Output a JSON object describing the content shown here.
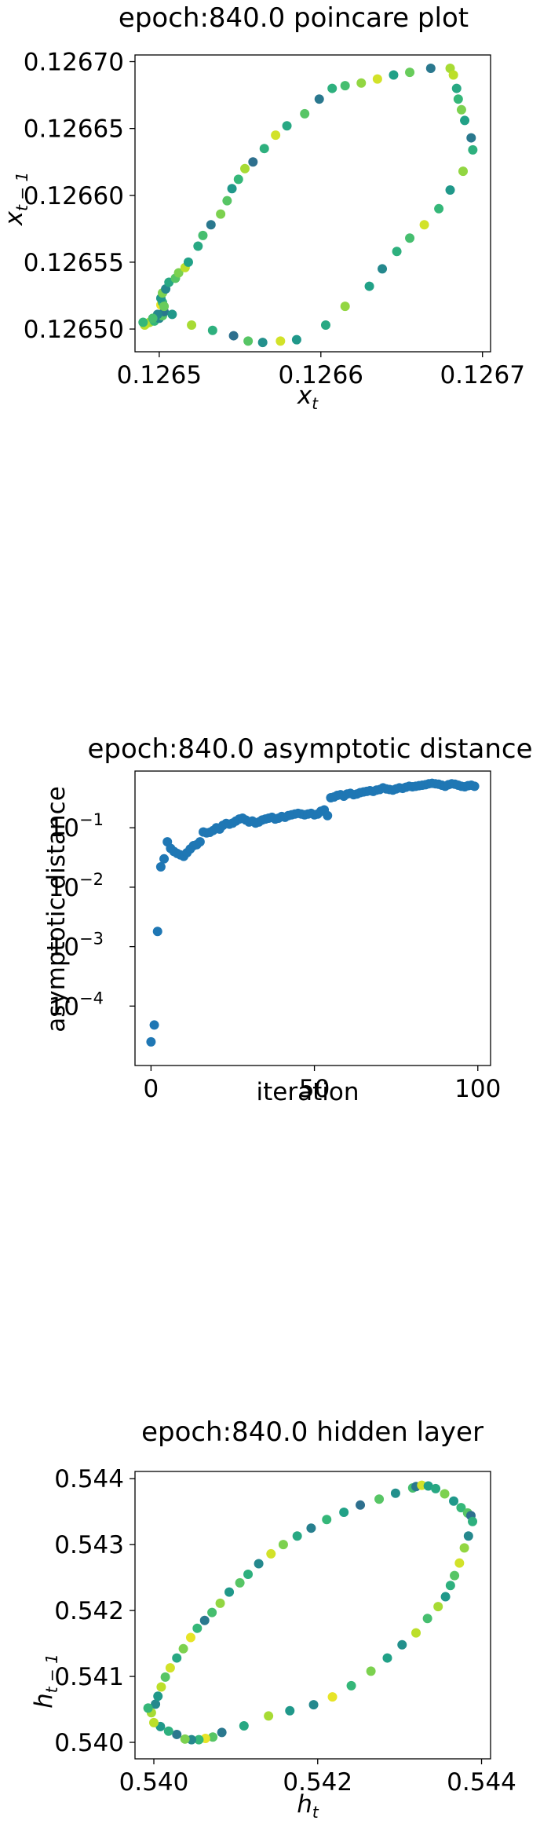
{
  "chart_data": [
    {
      "type": "scatter",
      "title": "epoch:840.0 poincare plot",
      "xlabel": "x_t",
      "ylabel": "x_{t-1}",
      "xlim": [
        0.126485,
        0.126705
      ],
      "ylim": [
        0.126483,
        0.126705
      ],
      "xticks": [
        {
          "value": 0.1265,
          "label": "0.1265"
        },
        {
          "value": 0.1266,
          "label": "0.1266"
        },
        {
          "value": 0.1267,
          "label": "0.1267"
        }
      ],
      "yticks": [
        {
          "value": 0.1265,
          "label": "0.12650"
        },
        {
          "value": 0.12655,
          "label": "0.12655"
        },
        {
          "value": 0.1266,
          "label": "0.12660"
        },
        {
          "value": 0.12665,
          "label": "0.12665"
        },
        {
          "value": 0.1267,
          "label": "0.12670"
        }
      ],
      "colormap": [
        "#31688e",
        "#26828e",
        "#1f9e89",
        "#35b779",
        "#6ece58",
        "#b5de2b",
        "#fde725"
      ],
      "grid": false,
      "points": [
        [
          0.126492,
          0.126504,
          0.9
        ],
        [
          0.126494,
          0.126505,
          0.8
        ],
        [
          0.126497,
          0.126506,
          0.5
        ],
        [
          0.1265,
          0.126508,
          0.2
        ],
        [
          0.126502,
          0.12651,
          0.6
        ],
        [
          0.126503,
          0.126513,
          0.1
        ],
        [
          0.126501,
          0.126518,
          0.95
        ],
        [
          0.126502,
          0.12652,
          0.5
        ],
        [
          0.126501,
          0.126523,
          0.3
        ],
        [
          0.126502,
          0.126527,
          0.7
        ],
        [
          0.126504,
          0.12653,
          0.2
        ],
        [
          0.126506,
          0.126535,
          0.4
        ],
        [
          0.12651,
          0.126538,
          0.6
        ],
        [
          0.126512,
          0.126542,
          0.7
        ],
        [
          0.126516,
          0.126546,
          0.85
        ],
        [
          0.126518,
          0.12655,
          0.35
        ],
        [
          0.126524,
          0.126562,
          0.4
        ],
        [
          0.126527,
          0.12657,
          0.55
        ],
        [
          0.126532,
          0.126578,
          0.1
        ],
        [
          0.126538,
          0.126586,
          0.7
        ],
        [
          0.126542,
          0.126596,
          0.6
        ],
        [
          0.126545,
          0.126605,
          0.3
        ],
        [
          0.126549,
          0.126612,
          0.5
        ],
        [
          0.126553,
          0.12662,
          0.8
        ],
        [
          0.126558,
          0.126625,
          0.05
        ],
        [
          0.126565,
          0.126635,
          0.45
        ],
        [
          0.126572,
          0.126645,
          0.9
        ],
        [
          0.126579,
          0.126652,
          0.4
        ],
        [
          0.12659,
          0.126661,
          0.6
        ],
        [
          0.126599,
          0.126672,
          0.1
        ],
        [
          0.126607,
          0.12668,
          0.45
        ],
        [
          0.126615,
          0.126682,
          0.55
        ],
        [
          0.126625,
          0.126684,
          0.75
        ],
        [
          0.126635,
          0.126687,
          0.9
        ],
        [
          0.126645,
          0.12669,
          0.35
        ],
        [
          0.126655,
          0.126692,
          0.65
        ],
        [
          0.126668,
          0.126695,
          0.1
        ],
        [
          0.12668,
          0.126695,
          0.8
        ],
        [
          0.126682,
          0.12669,
          0.85
        ],
        [
          0.126684,
          0.12668,
          0.4
        ],
        [
          0.126685,
          0.126672,
          0.5
        ],
        [
          0.126687,
          0.126664,
          0.7
        ],
        [
          0.126689,
          0.126656,
          0.35
        ],
        [
          0.126693,
          0.126643,
          0.1
        ],
        [
          0.126694,
          0.126634,
          0.45
        ],
        [
          0.126688,
          0.126618,
          0.75
        ],
        [
          0.12668,
          0.126604,
          0.3
        ],
        [
          0.126673,
          0.12659,
          0.5
        ],
        [
          0.126664,
          0.126578,
          0.9
        ],
        [
          0.126655,
          0.126568,
          0.55
        ],
        [
          0.126647,
          0.126558,
          0.45
        ],
        [
          0.126638,
          0.126545,
          0.2
        ],
        [
          0.12663,
          0.126532,
          0.35
        ],
        [
          0.126615,
          0.126517,
          0.75
        ],
        [
          0.126603,
          0.126503,
          0.4
        ],
        [
          0.126585,
          0.126492,
          0.3
        ],
        [
          0.126575,
          0.126491,
          0.9
        ],
        [
          0.126564,
          0.12649,
          0.25
        ],
        [
          0.126555,
          0.126491,
          0.6
        ],
        [
          0.126546,
          0.126495,
          0.05
        ],
        [
          0.126533,
          0.126499,
          0.45
        ],
        [
          0.12652,
          0.126503,
          0.8
        ],
        [
          0.126508,
          0.126511,
          0.3
        ],
        [
          0.126503,
          0.126517,
          0.65
        ],
        [
          0.126499,
          0.126511,
          0.2
        ],
        [
          0.126496,
          0.126508,
          0.55
        ],
        [
          0.126491,
          0.126503,
          0.85
        ],
        [
          0.12649,
          0.126505,
          0.5
        ]
      ]
    },
    {
      "type": "scatter",
      "title": "epoch:840.0 asymptotic distance",
      "xlabel": "iteration",
      "ylabel": "asymptotic distance",
      "xlim": [
        -4.9,
        103.9
      ],
      "ylim": [
        1e-05,
        0.9
      ],
      "yscale": "log",
      "xticks": [
        {
          "value": 0,
          "label": "0"
        },
        {
          "value": 50,
          "label": "50"
        },
        {
          "value": 100,
          "label": "100"
        }
      ],
      "yticks": [
        {
          "value": 0.0001,
          "mantissa": "10",
          "exponent": "−4"
        },
        {
          "value": 0.001,
          "mantissa": "10",
          "exponent": "−3"
        },
        {
          "value": 0.01,
          "mantissa": "10",
          "exponent": "−2"
        },
        {
          "value": 0.1,
          "mantissa": "10",
          "exponent": "−1"
        }
      ],
      "color": "#1f77b4",
      "grid": false,
      "x": [
        0,
        1,
        2,
        3,
        4,
        5,
        6,
        7,
        8,
        9,
        10,
        11,
        12,
        13,
        14,
        15,
        16,
        17,
        18,
        19,
        20,
        21,
        22,
        23,
        24,
        25,
        26,
        27,
        28,
        29,
        30,
        31,
        32,
        33,
        34,
        35,
        36,
        37,
        38,
        39,
        40,
        41,
        42,
        43,
        44,
        45,
        46,
        47,
        48,
        49,
        50,
        51,
        52,
        53,
        54,
        55,
        56,
        57,
        58,
        59,
        60,
        61,
        62,
        63,
        64,
        65,
        66,
        67,
        68,
        69,
        70,
        71,
        72,
        73,
        74,
        75,
        76,
        77,
        78,
        79,
        80,
        81,
        82,
        83,
        84,
        85,
        86,
        87,
        88,
        89,
        90,
        91,
        92,
        93,
        94,
        95,
        96,
        97,
        98,
        99
      ],
      "y": [
        2.5e-05,
        4.8e-05,
        0.0018,
        0.022,
        0.03,
        0.058,
        0.045,
        0.04,
        0.037,
        0.035,
        0.033,
        0.038,
        0.044,
        0.05,
        0.052,
        0.058,
        0.085,
        0.082,
        0.084,
        0.09,
        0.1,
        0.095,
        0.11,
        0.118,
        0.115,
        0.12,
        0.13,
        0.14,
        0.145,
        0.135,
        0.125,
        0.13,
        0.12,
        0.125,
        0.135,
        0.14,
        0.145,
        0.15,
        0.14,
        0.145,
        0.155,
        0.15,
        0.16,
        0.165,
        0.17,
        0.175,
        0.17,
        0.165,
        0.17,
        0.175,
        0.165,
        0.17,
        0.19,
        0.2,
        0.16,
        0.32,
        0.33,
        0.35,
        0.36,
        0.34,
        0.37,
        0.38,
        0.36,
        0.37,
        0.39,
        0.4,
        0.41,
        0.42,
        0.41,
        0.43,
        0.44,
        0.47,
        0.45,
        0.44,
        0.43,
        0.45,
        0.47,
        0.46,
        0.48,
        0.5,
        0.49,
        0.5,
        0.51,
        0.52,
        0.53,
        0.55,
        0.56,
        0.55,
        0.54,
        0.52,
        0.5,
        0.53,
        0.55,
        0.54,
        0.52,
        0.5,
        0.49,
        0.51,
        0.52,
        0.5
      ]
    },
    {
      "type": "scatter",
      "title": "epoch:840.0 hidden layer",
      "xlabel": "h_t",
      "ylabel": "h_{t-1}",
      "xlim": [
        0.53977,
        0.54411
      ],
      "ylim": [
        0.53975,
        0.54411
      ],
      "xticks": [
        {
          "value": 0.54,
          "label": "0.540"
        },
        {
          "value": 0.542,
          "label": "0.542"
        },
        {
          "value": 0.544,
          "label": "0.544"
        }
      ],
      "yticks": [
        {
          "value": 0.54,
          "label": "0.540"
        },
        {
          "value": 0.541,
          "label": "0.541"
        },
        {
          "value": 0.542,
          "label": "0.542"
        },
        {
          "value": 0.543,
          "label": "0.543"
        },
        {
          "value": 0.544,
          "label": "0.544"
        }
      ],
      "colormap": [
        "#31688e",
        "#26828e",
        "#1f9e89",
        "#35b779",
        "#6ece58",
        "#b5de2b",
        "#fde725"
      ],
      "grid": false,
      "points": [
        [
          0.53993,
          0.54052,
          0.5
        ],
        [
          0.53997,
          0.54045,
          0.8
        ],
        [
          0.54002,
          0.54058,
          0.2
        ],
        [
          0.54005,
          0.5407,
          0.3
        ],
        [
          0.54009,
          0.54084,
          0.85
        ],
        [
          0.54014,
          0.54099,
          0.6
        ],
        [
          0.5402,
          0.54113,
          0.9
        ],
        [
          0.54028,
          0.54128,
          0.4
        ],
        [
          0.54036,
          0.54142,
          0.7
        ],
        [
          0.54045,
          0.54159,
          0.95
        ],
        [
          0.54053,
          0.54173,
          0.5
        ],
        [
          0.54062,
          0.54185,
          0.1
        ],
        [
          0.54071,
          0.54197,
          0.55
        ],
        [
          0.54081,
          0.54211,
          0.75
        ],
        [
          0.54092,
          0.54228,
          0.3
        ],
        [
          0.54105,
          0.54242,
          0.6
        ],
        [
          0.54115,
          0.54255,
          0.45
        ],
        [
          0.54128,
          0.54271,
          0.2
        ],
        [
          0.54143,
          0.54286,
          0.9
        ],
        [
          0.54158,
          0.543,
          0.7
        ],
        [
          0.54175,
          0.54313,
          0.4
        ],
        [
          0.54192,
          0.54325,
          0.15
        ],
        [
          0.54211,
          0.54338,
          0.5
        ],
        [
          0.54232,
          0.54349,
          0.35
        ],
        [
          0.54252,
          0.5436,
          0.05
        ],
        [
          0.54275,
          0.54369,
          0.6
        ],
        [
          0.54295,
          0.54378,
          0.25
        ],
        [
          0.54316,
          0.54386,
          0.55
        ],
        [
          0.5432,
          0.54388,
          0.1
        ],
        [
          0.54327,
          0.5439,
          0.9
        ],
        [
          0.54335,
          0.54389,
          0.35
        ],
        [
          0.54344,
          0.54385,
          0.4
        ],
        [
          0.54355,
          0.54377,
          0.7
        ],
        [
          0.54366,
          0.54366,
          0.3
        ],
        [
          0.54375,
          0.54356,
          0.5
        ],
        [
          0.54383,
          0.54348,
          0.6
        ],
        [
          0.54387,
          0.54344,
          0.05
        ],
        [
          0.54389,
          0.54335,
          0.45
        ],
        [
          0.54384,
          0.54313,
          0.2
        ],
        [
          0.54379,
          0.54295,
          0.75
        ],
        [
          0.54373,
          0.54272,
          0.9
        ],
        [
          0.54367,
          0.54253,
          0.6
        ],
        [
          0.54362,
          0.54238,
          0.45
        ],
        [
          0.54356,
          0.54221,
          0.3
        ],
        [
          0.54347,
          0.54206,
          0.8
        ],
        [
          0.54334,
          0.54188,
          0.55
        ],
        [
          0.5432,
          0.54166,
          0.85
        ],
        [
          0.54303,
          0.54148,
          0.25
        ],
        [
          0.54285,
          0.54128,
          0.35
        ],
        [
          0.54265,
          0.54108,
          0.7
        ],
        [
          0.54241,
          0.54086,
          0.5
        ],
        [
          0.54218,
          0.54069,
          0.95
        ],
        [
          0.54195,
          0.54057,
          0.2
        ],
        [
          0.54166,
          0.54048,
          0.3
        ],
        [
          0.5414,
          0.5404,
          0.8
        ],
        [
          0.5411,
          0.54025,
          0.4
        ],
        [
          0.54083,
          0.54015,
          0.1
        ],
        [
          0.54072,
          0.54008,
          0.6
        ],
        [
          0.54063,
          0.54006,
          0.95
        ],
        [
          0.54055,
          0.54004,
          0.5
        ],
        [
          0.54046,
          0.54004,
          0.2
        ],
        [
          0.54038,
          0.54005,
          0.7
        ],
        [
          0.54028,
          0.54012,
          0.1
        ],
        [
          0.54018,
          0.54017,
          0.45
        ],
        [
          0.54008,
          0.54024,
          0.3
        ],
        [
          0.54,
          0.5403,
          0.85
        ],
        [
          0.53993,
          0.54052,
          0.5
        ]
      ]
    }
  ]
}
